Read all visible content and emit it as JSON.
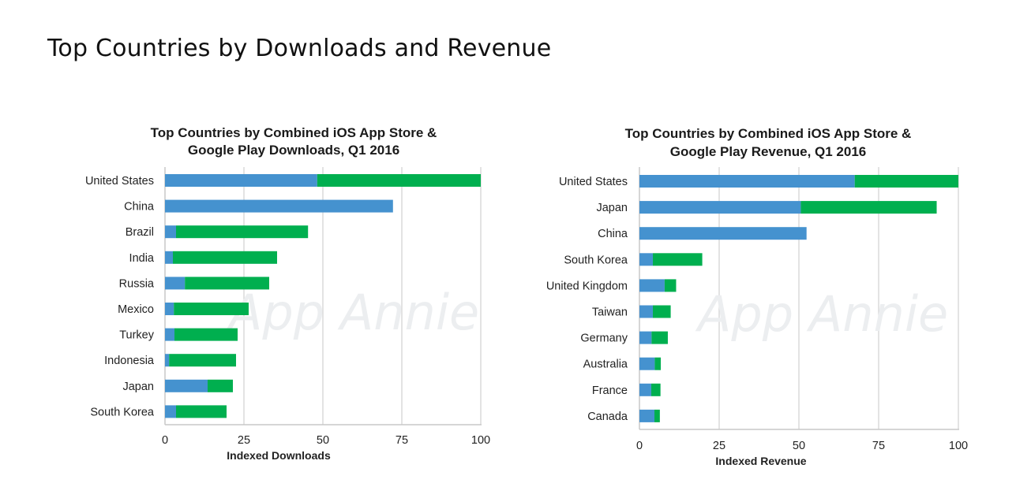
{
  "page": {
    "title": "Top Countries by Downloads and Revenue"
  },
  "colors": {
    "ios": "#4592cf",
    "google_play": "#00af4f",
    "grid": "#d0d0d0",
    "axis": "#c8c8c8"
  },
  "watermark": "App Annie",
  "chart_data": [
    {
      "type": "bar",
      "orientation": "horizontal",
      "stacked": true,
      "title": [
        "Top Countries by Combined iOS App Store &",
        "Google Play Downloads, Q1 2016"
      ],
      "xlabel": "Indexed Downloads",
      "ylabel": "",
      "xlim": [
        0,
        100
      ],
      "xticks": [
        "0",
        "25",
        "50",
        "75",
        "100"
      ],
      "grid": true,
      "categories": [
        "United States",
        "China",
        "Brazil",
        "India",
        "Russia",
        "Mexico",
        "Turkey",
        "Indonesia",
        "Japan",
        "South Korea"
      ],
      "series": [
        {
          "name": "iOS App Store",
          "color": "#4592cf",
          "values": [
            48.2,
            72.2,
            3.5,
            2.5,
            6.3,
            2.8,
            3.0,
            1.3,
            13.5,
            3.5
          ]
        },
        {
          "name": "Google Play",
          "color": "#00af4f",
          "values": [
            51.8,
            0,
            41.8,
            33.0,
            26.7,
            23.7,
            20.0,
            21.2,
            8.0,
            16.0
          ]
        }
      ]
    },
    {
      "type": "bar",
      "orientation": "horizontal",
      "stacked": true,
      "title": [
        "Top Countries by Combined iOS App Store &",
        "Google Play Revenue, Q1 2016"
      ],
      "xlabel": "Indexed Revenue",
      "ylabel": "",
      "xlim": [
        0,
        100
      ],
      "xticks": [
        "0",
        "25",
        "50",
        "75",
        "100"
      ],
      "grid": true,
      "categories": [
        "United States",
        "Japan",
        "China",
        "South Korea",
        "United Kingdom",
        "Taiwan",
        "Germany",
        "Australia",
        "France",
        "Canada"
      ],
      "series": [
        {
          "name": "iOS App Store",
          "color": "#4592cf",
          "values": [
            67.5,
            50.6,
            52.4,
            4.2,
            7.9,
            4.2,
            3.8,
            4.8,
            3.7,
            4.7
          ]
        },
        {
          "name": "Google Play",
          "color": "#00af4f",
          "values": [
            32.5,
            42.6,
            0,
            15.5,
            3.6,
            5.6,
            5.1,
            1.9,
            2.9,
            1.7
          ]
        }
      ]
    }
  ]
}
